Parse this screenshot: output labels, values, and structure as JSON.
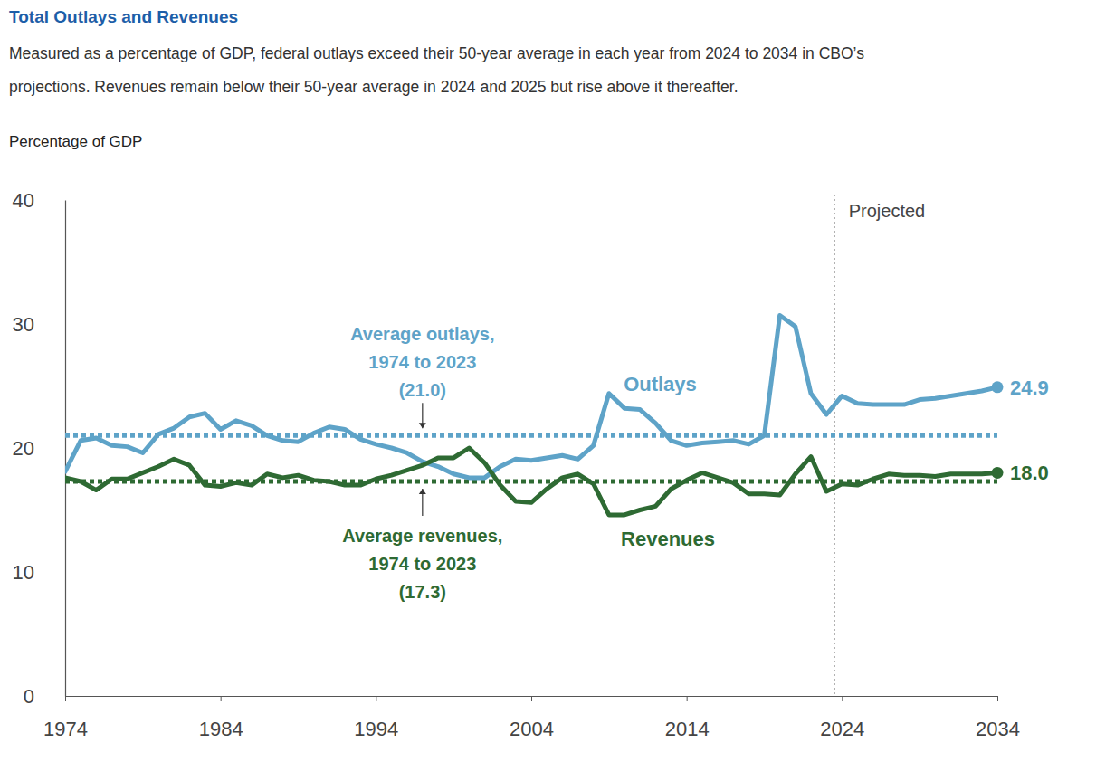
{
  "chart_data": {
    "type": "line",
    "title": "Total Outlays and Revenues",
    "subtitle": [
      "Measured as a percentage of GDP, federal outlays exceed their 50-year average in each year from 2024 to 2034 in CBO’s",
      "projections. Revenues remain below their 50-year average in 2024 and 2025 but rise above it thereafter."
    ],
    "y_label": "Percentage of GDP",
    "x": [
      1974,
      1975,
      1976,
      1977,
      1978,
      1979,
      1980,
      1981,
      1982,
      1983,
      1984,
      1985,
      1986,
      1987,
      1988,
      1989,
      1990,
      1991,
      1992,
      1993,
      1994,
      1995,
      1996,
      1997,
      1998,
      1999,
      2000,
      2001,
      2002,
      2003,
      2004,
      2005,
      2006,
      2007,
      2008,
      2009,
      2010,
      2011,
      2012,
      2013,
      2014,
      2015,
      2016,
      2017,
      2018,
      2019,
      2020,
      2021,
      2022,
      2023,
      2024,
      2025,
      2026,
      2027,
      2028,
      2029,
      2030,
      2031,
      2032,
      2033,
      2034
    ],
    "xlim": [
      1974,
      2034
    ],
    "xticks": [
      1974,
      1984,
      1994,
      2004,
      2014,
      2024,
      2034
    ],
    "ylim": [
      0,
      40
    ],
    "yticks": [
      0,
      10,
      20,
      30,
      40
    ],
    "grid": false,
    "series": [
      {
        "name": "Outlays",
        "color": "#5ea3c8",
        "marker": "end",
        "end_label": "24.9",
        "values": [
          18.1,
          20.6,
          20.8,
          20.2,
          20.1,
          19.6,
          21.1,
          21.6,
          22.5,
          22.8,
          21.5,
          22.2,
          21.8,
          21.0,
          20.6,
          20.5,
          21.2,
          21.7,
          21.5,
          20.7,
          20.3,
          20.0,
          19.6,
          18.9,
          18.5,
          17.9,
          17.6,
          17.6,
          18.5,
          19.1,
          19.0,
          19.2,
          19.4,
          19.1,
          20.2,
          24.4,
          23.2,
          23.1,
          22.0,
          20.6,
          20.2,
          20.4,
          20.5,
          20.6,
          20.3,
          21.0,
          30.7,
          29.8,
          24.4,
          22.7,
          24.2,
          23.6,
          23.5,
          23.5,
          23.5,
          23.9,
          24.0,
          24.2,
          24.4,
          24.6,
          24.9
        ]
      },
      {
        "name": "Revenues",
        "color": "#2e6a33",
        "marker": "end",
        "end_label": "18.0",
        "values": [
          17.6,
          17.3,
          16.6,
          17.5,
          17.5,
          18.0,
          18.5,
          19.1,
          18.6,
          17.0,
          16.9,
          17.2,
          17.0,
          17.9,
          17.6,
          17.8,
          17.4,
          17.3,
          17.0,
          17.0,
          17.5,
          17.8,
          18.2,
          18.6,
          19.2,
          19.2,
          20.0,
          18.8,
          17.0,
          15.7,
          15.6,
          16.7,
          17.6,
          17.9,
          17.1,
          14.6,
          14.6,
          15.0,
          15.3,
          16.7,
          17.4,
          18.0,
          17.6,
          17.2,
          16.3,
          16.3,
          16.2,
          17.9,
          19.3,
          16.5,
          17.1,
          17.0,
          17.5,
          17.9,
          17.8,
          17.8,
          17.7,
          17.9,
          17.9,
          17.9,
          18.0
        ]
      }
    ],
    "reference_lines": [
      {
        "value": 21.0,
        "color": "#5ea3c8",
        "line_style": "dotted",
        "label": [
          "Average outlays,",
          "1974 to 2023",
          "(21.0)"
        ]
      },
      {
        "value": 17.3,
        "color": "#2e6a33",
        "line_style": "dotted",
        "label": [
          "Average revenues,",
          "1974 to 2023",
          "(17.3)"
        ]
      }
    ],
    "annotations": [
      {
        "text": "Projected",
        "x": 2023.5
      }
    ]
  }
}
